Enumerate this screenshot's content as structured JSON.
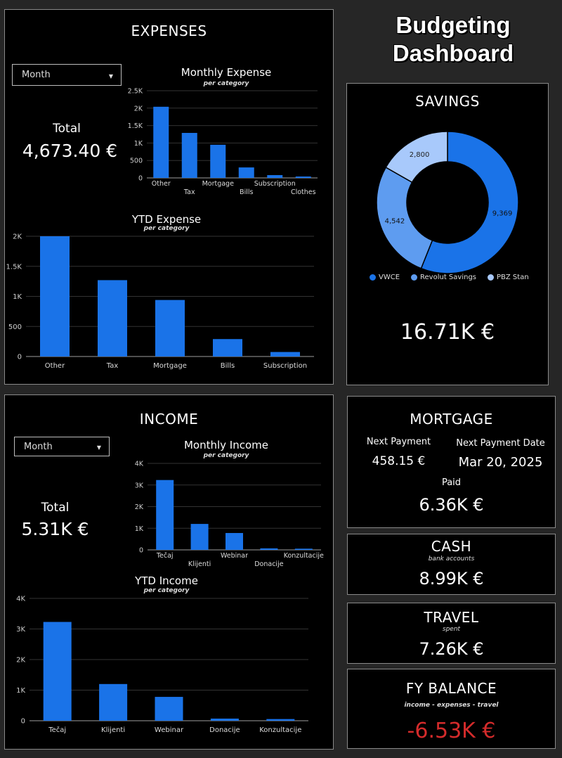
{
  "header": {
    "title_line1": "Budgeting",
    "title_line2": "Dashboard"
  },
  "expenses": {
    "title": "EXPENSES",
    "period_select": "Month",
    "total_label": "Total",
    "total_value": "4,673.40 €",
    "monthly_title": "Monthly Expense",
    "monthly_subtitle": "per category",
    "ytd_title": "YTD Expense",
    "ytd_subtitle": "per category"
  },
  "savings": {
    "title": "SAVINGS",
    "total_value": "16.71K €",
    "legend": [
      "VWCE",
      "Revolut Savings",
      "PBZ Stan"
    ]
  },
  "income": {
    "title": "INCOME",
    "period_select": "Month",
    "total_label": "Total",
    "total_value": "5.31K €",
    "monthly_title": "Monthly Income",
    "monthly_subtitle": "per category",
    "ytd_title": "YTD Income",
    "ytd_subtitle": "per category"
  },
  "mortgage": {
    "title": "MORTGAGE",
    "next_payment_label": "Next Payment",
    "next_payment_value": "458.15 €",
    "next_date_label": "Next Payment Date",
    "next_date_value": "Mar 20, 2025",
    "paid_label": "Paid",
    "paid_value": "6.36K €"
  },
  "cash": {
    "title": "CASH",
    "subtitle": "bank accounts",
    "value": "8.99K €"
  },
  "travel": {
    "title": "TRAVEL",
    "subtitle": "spent",
    "value": "7.26K €"
  },
  "fy_balance": {
    "title": "FY BALANCE",
    "subtitle": "income - expenses - travel",
    "value": "-6.53K €",
    "value_color": "#d42b2b"
  },
  "colors": {
    "bar": "#1a73e8",
    "vwce": "#1a73e8",
    "revolut": "#5e9cf0",
    "pbz": "#a8c9fb",
    "grid": "#333333"
  },
  "chart_data": [
    {
      "id": "monthly_expense",
      "type": "bar",
      "title": "Monthly Expense",
      "subtitle": "per category",
      "categories": [
        "Other",
        "Tax",
        "Mortgage",
        "Bills",
        "Subscription",
        "Clothes"
      ],
      "values": [
        2040,
        1290,
        950,
        300,
        80,
        40
      ],
      "yticks": [
        "0",
        "500",
        "1K",
        "1.5K",
        "2K",
        "2.5K"
      ],
      "ylim": [
        0,
        2500
      ]
    },
    {
      "id": "ytd_expense",
      "type": "bar",
      "title": "YTD Expense",
      "subtitle": "per category",
      "categories": [
        "Other",
        "Tax",
        "Mortgage",
        "Bills",
        "Subscription"
      ],
      "values": [
        2000,
        1270,
        940,
        290,
        75
      ],
      "yticks": [
        "0",
        "500",
        "1K",
        "1.5K",
        "2K"
      ],
      "ylim": [
        0,
        2000
      ]
    },
    {
      "id": "savings",
      "type": "pie",
      "categories": [
        "VWCE",
        "Revolut Savings",
        "PBZ Stan"
      ],
      "values": [
        9369,
        4542,
        2800
      ],
      "labels": [
        "9,369",
        "4,542",
        "2,800"
      ]
    },
    {
      "id": "monthly_income",
      "type": "bar",
      "title": "Monthly Income",
      "subtitle": "per category",
      "categories": [
        "Tečaj",
        "Klijenti",
        "Webinar",
        "Donacije",
        "Konzultacije"
      ],
      "values": [
        3230,
        1200,
        780,
        70,
        55
      ],
      "yticks": [
        "0",
        "1K",
        "2K",
        "3K",
        "4K"
      ],
      "ylim": [
        0,
        4000
      ]
    },
    {
      "id": "ytd_income",
      "type": "bar",
      "title": "YTD Income",
      "subtitle": "per category",
      "categories": [
        "Tečaj",
        "Klijenti",
        "Webinar",
        "Donacije",
        "Konzultacije"
      ],
      "values": [
        3230,
        1200,
        780,
        70,
        55
      ],
      "yticks": [
        "0",
        "1K",
        "2K",
        "3K",
        "4K"
      ],
      "ylim": [
        0,
        4000
      ]
    }
  ]
}
